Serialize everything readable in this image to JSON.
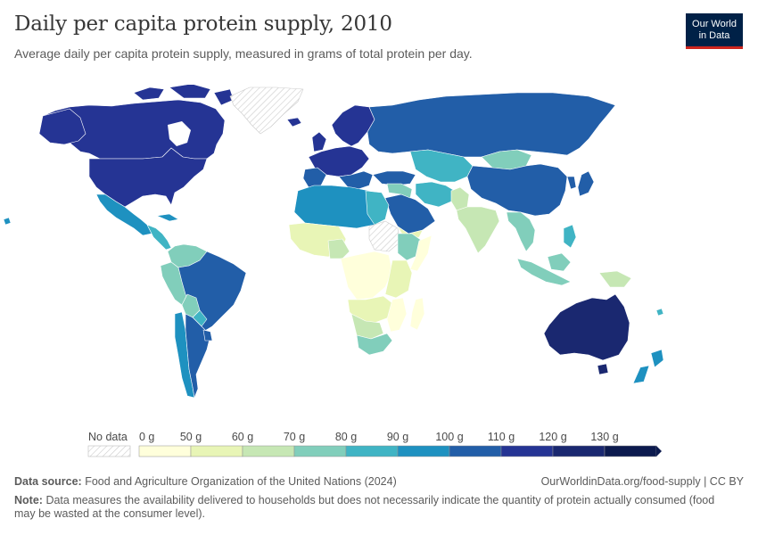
{
  "header": {
    "title": "Daily per capita protein supply, 2010",
    "subtitle": "Average daily per capita protein supply, measured in grams of total protein per day."
  },
  "logo": {
    "line1": "Our World",
    "line2": "in Data"
  },
  "legend": {
    "no_data_label": "No data",
    "bins": [
      {
        "label": "0 g",
        "color": "#ffffdb"
      },
      {
        "label": "50 g",
        "color": "#e8f5b6"
      },
      {
        "label": "60 g",
        "color": "#c6e7b4"
      },
      {
        "label": "70 g",
        "color": "#81cebb"
      },
      {
        "label": "80 g",
        "color": "#40b4c4"
      },
      {
        "label": "90 g",
        "color": "#1e91c0"
      },
      {
        "label": "100 g",
        "color": "#225ea8"
      },
      {
        "label": "110 g",
        "color": "#253494"
      },
      {
        "label": "120 g",
        "color": "#1a2870"
      },
      {
        "label": "130 g",
        "color": "#0c1a4e"
      }
    ]
  },
  "colors": {
    "no_data_stroke": "#cccccc",
    "border": "#ffffff",
    "logo_bg": "#002147",
    "logo_accent": "#ce261e"
  },
  "footer": {
    "source_label": "Data source:",
    "source_text": "Food and Agriculture Organization of the United Nations (2024)",
    "link": "OurWorldinData.org/food-supply | CC BY",
    "note_label": "Note:",
    "note_text": "Data measures the availability delivered to households but does not necessarily indicate the quantity of protein actually consumed (food may be wasted at the consumer level)."
  }
}
